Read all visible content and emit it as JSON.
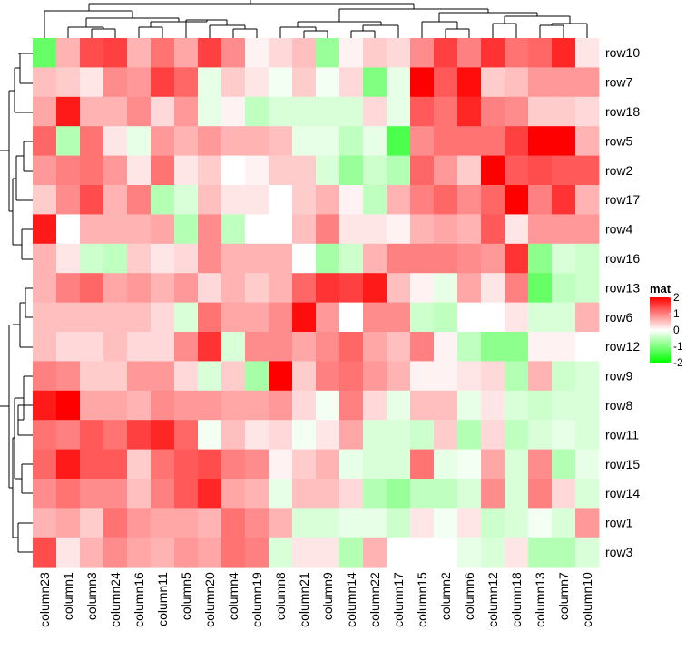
{
  "chart_data": {
    "type": "heatmap",
    "title": "",
    "xlabel": "",
    "ylabel": "",
    "columns": [
      "column23",
      "column1",
      "column3",
      "column24",
      "column16",
      "column11",
      "column5",
      "column20",
      "column4",
      "column19",
      "column8",
      "column21",
      "column9",
      "column14",
      "column22",
      "column17",
      "column15",
      "column2",
      "column6",
      "column12",
      "column18",
      "column13",
      "column7",
      "column10"
    ],
    "rows": [
      "row10",
      "row7",
      "row18",
      "row5",
      "row2",
      "row17",
      "row4",
      "row16",
      "row13",
      "row6",
      "row12",
      "row9",
      "row8",
      "row11",
      "row15",
      "row14",
      "row1",
      "row3"
    ],
    "values": [
      [
        -1.2,
        0.6,
        1.4,
        1.5,
        0.6,
        1.1,
        0.7,
        1.5,
        0.9,
        0.1,
        0.3,
        0.5,
        -0.8,
        0.1,
        0.4,
        0.3,
        0.9,
        1.5,
        1.0,
        1.6,
        1.1,
        1.2,
        1.7,
        0.2
      ],
      [
        0.5,
        0.4,
        0.2,
        0.9,
        0.8,
        1.5,
        1.2,
        -0.2,
        0.4,
        0.2,
        -0.1,
        0.4,
        -0.1,
        0.3,
        -1.0,
        -0.2,
        2.3,
        1.3,
        1.9,
        0.4,
        0.5,
        0.8,
        0.8,
        0.8
      ],
      [
        0.7,
        1.8,
        0.6,
        0.6,
        0.9,
        0.3,
        0.8,
        -0.2,
        0.1,
        -0.5,
        -0.3,
        -0.3,
        -0.3,
        -0.3,
        0.3,
        -0.2,
        1.3,
        1.1,
        1.7,
        1.0,
        0.9,
        0.4,
        0.4,
        0.3
      ],
      [
        1.2,
        -0.6,
        1.1,
        0.2,
        -0.2,
        0.8,
        0.6,
        0.8,
        0.6,
        0.6,
        0.5,
        -0.2,
        -0.2,
        -0.5,
        -0.2,
        -1.4,
        0.9,
        1.1,
        1.1,
        1.1,
        1.5,
        2.3,
        2.3,
        0.6
      ],
      [
        0.8,
        1.0,
        1.1,
        0.8,
        0.2,
        1.1,
        0.2,
        0.4,
        0.0,
        0.1,
        0.4,
        0.4,
        -0.3,
        -0.8,
        -0.4,
        -0.6,
        1.2,
        0.8,
        0.4,
        2.4,
        1.3,
        1.4,
        1.3,
        1.3
      ],
      [
        0.4,
        0.9,
        1.4,
        0.6,
        1.0,
        -0.6,
        -0.3,
        0.5,
        0.2,
        0.2,
        0.0,
        0.4,
        0.6,
        0.1,
        -0.5,
        0.6,
        1.0,
        1.2,
        0.9,
        1.2,
        2.4,
        1.0,
        1.6,
        0.6
      ],
      [
        1.8,
        0.0,
        0.6,
        0.6,
        0.6,
        0.7,
        -0.6,
        0.9,
        -0.5,
        0.0,
        0.0,
        0.5,
        1.0,
        0.2,
        0.2,
        0.1,
        0.6,
        0.7,
        0.6,
        1.3,
        0.2,
        0.8,
        0.8,
        0.8
      ],
      [
        0.6,
        0.2,
        -0.4,
        -0.5,
        0.4,
        0.2,
        0.3,
        0.9,
        0.6,
        0.6,
        0.6,
        0.0,
        -0.7,
        -0.4,
        0.6,
        1.0,
        1.0,
        1.0,
        0.9,
        0.8,
        1.6,
        -0.9,
        -0.3,
        -0.4
      ],
      [
        0.6,
        1.0,
        1.2,
        0.7,
        0.8,
        0.6,
        0.8,
        0.3,
        0.6,
        0.4,
        0.6,
        1.2,
        1.6,
        1.5,
        1.8,
        0.5,
        0.1,
        -0.2,
        0.7,
        0.2,
        1.0,
        -1.2,
        -0.5,
        -0.4
      ],
      [
        0.5,
        0.5,
        0.5,
        0.5,
        0.5,
        0.3,
        -0.3,
        1.1,
        0.7,
        0.7,
        0.9,
        1.9,
        0.8,
        0.0,
        0.9,
        0.9,
        -0.4,
        -0.5,
        0.0,
        0.0,
        0.2,
        -0.3,
        -0.3,
        0.6
      ],
      [
        0.5,
        0.3,
        0.3,
        0.5,
        0.3,
        0.3,
        0.9,
        1.6,
        -0.3,
        0.9,
        0.9,
        0.7,
        0.9,
        1.2,
        0.7,
        0.5,
        1.0,
        0.1,
        -0.5,
        -0.9,
        -0.9,
        0.1,
        0.1,
        0.0
      ],
      [
        1.0,
        0.9,
        0.4,
        0.4,
        0.8,
        0.8,
        0.3,
        -0.3,
        0.4,
        -0.7,
        2.0,
        0.4,
        1.0,
        1.1,
        0.8,
        0.6,
        0.1,
        0.1,
        0.2,
        0.3,
        -0.6,
        0.6,
        -0.4,
        -0.3
      ],
      [
        1.8,
        2.1,
        0.7,
        0.7,
        0.6,
        0.9,
        0.8,
        0.8,
        0.7,
        0.7,
        0.8,
        0.3,
        -0.1,
        1.0,
        0.3,
        -0.2,
        0.5,
        0.5,
        -0.2,
        0.2,
        -0.3,
        -0.4,
        -0.3,
        -0.3
      ],
      [
        1.1,
        1.0,
        1.3,
        1.1,
        1.5,
        1.7,
        1.2,
        -0.1,
        0.5,
        0.2,
        0.3,
        -0.1,
        0.2,
        0.7,
        -0.3,
        -0.3,
        -0.4,
        0.4,
        -0.6,
        0.3,
        -0.5,
        -0.3,
        -0.2,
        -0.3
      ],
      [
        1.2,
        1.8,
        1.3,
        1.3,
        0.4,
        1.1,
        1.3,
        1.4,
        1.0,
        0.9,
        0.1,
        0.4,
        0.6,
        -0.2,
        -0.3,
        -0.3,
        1.1,
        -0.2,
        -0.1,
        0.7,
        -0.3,
        0.9,
        -0.6,
        -0.2
      ],
      [
        0.9,
        1.1,
        0.9,
        0.9,
        0.5,
        1.0,
        1.3,
        1.7,
        0.7,
        0.6,
        -0.2,
        0.5,
        0.5,
        0.3,
        -0.6,
        -0.8,
        -0.5,
        -0.5,
        -0.3,
        0.9,
        -0.3,
        1.0,
        0.3,
        -0.3
      ],
      [
        0.6,
        0.7,
        0.4,
        1.1,
        0.8,
        0.7,
        0.7,
        0.6,
        1.1,
        0.9,
        0.6,
        -0.3,
        -0.3,
        -0.2,
        -0.2,
        -0.4,
        0.2,
        -0.1,
        0.2,
        -0.4,
        -0.3,
        -0.1,
        -0.3,
        0.8
      ],
      [
        1.4,
        0.2,
        0.6,
        0.9,
        0.7,
        0.6,
        0.8,
        0.7,
        1.1,
        1.0,
        -0.3,
        0.2,
        0.2,
        -0.6,
        0.6,
        0.0,
        0.0,
        0.0,
        -0.2,
        -0.3,
        0.2,
        -0.6,
        -0.6,
        -0.3
      ]
    ],
    "legend": {
      "title": "mat",
      "position": "right",
      "ticks": [
        "2",
        "1",
        "0",
        "-1",
        "-2"
      ],
      "colors": {
        "low": "#00ff00",
        "mid": "#ffffff",
        "high": "#ff0000"
      },
      "range": [
        -2,
        2
      ]
    },
    "grid": false,
    "row_dendrogram": "left",
    "column_dendrogram": "top"
  }
}
